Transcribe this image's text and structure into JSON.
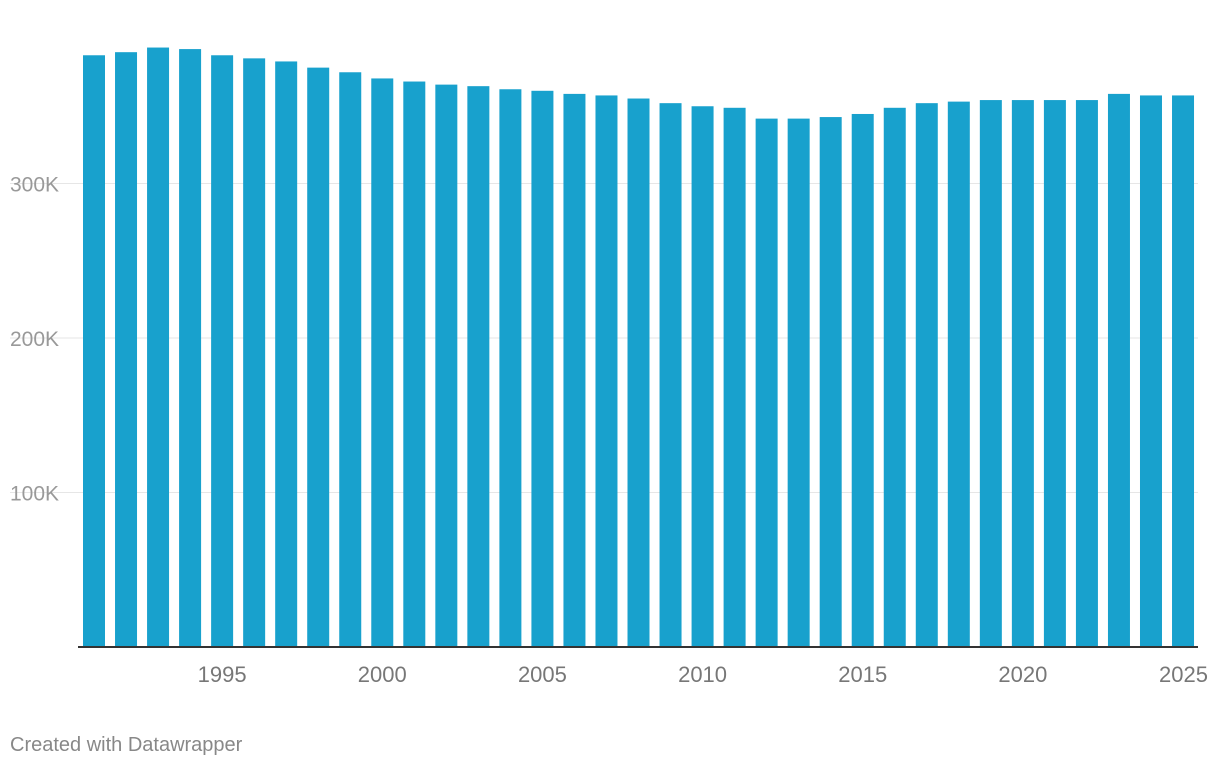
{
  "chart_data": {
    "type": "bar",
    "title": "",
    "xlabel": "",
    "ylabel": "",
    "categories": [
      1991,
      1992,
      1993,
      1994,
      1995,
      1996,
      1997,
      1998,
      1999,
      2000,
      2001,
      2002,
      2003,
      2004,
      2005,
      2006,
      2007,
      2008,
      2009,
      2010,
      2011,
      2012,
      2013,
      2014,
      2015,
      2016,
      2017,
      2018,
      2019,
      2020,
      2021,
      2022,
      2023,
      2024,
      2025
    ],
    "values": [
      383000,
      385000,
      388000,
      387000,
      383000,
      381000,
      379000,
      375000,
      372000,
      368000,
      366000,
      364000,
      363000,
      361000,
      360000,
      358000,
      357000,
      355000,
      352000,
      350000,
      349000,
      342000,
      342000,
      343000,
      345000,
      349000,
      352000,
      353000,
      354000,
      354000,
      354000,
      354000,
      358000,
      357000,
      357000
    ],
    "ylim": [
      0,
      420000
    ],
    "y_ticks": [
      100000,
      200000,
      300000
    ],
    "y_tick_labels": [
      "100K",
      "200K",
      "300K"
    ],
    "x_ticks": [
      1995,
      2000,
      2005,
      2010,
      2015,
      2020,
      2025
    ],
    "x_tick_labels": [
      "1995",
      "2000",
      "2005",
      "2010",
      "2015",
      "2020",
      "2025"
    ],
    "grid": true,
    "legend": "none",
    "bar_color": "#18a1cd",
    "grid_color": "#e6e6e6",
    "baseline_color": "#333333"
  },
  "footer": {
    "credit": "Created with Datawrapper"
  }
}
